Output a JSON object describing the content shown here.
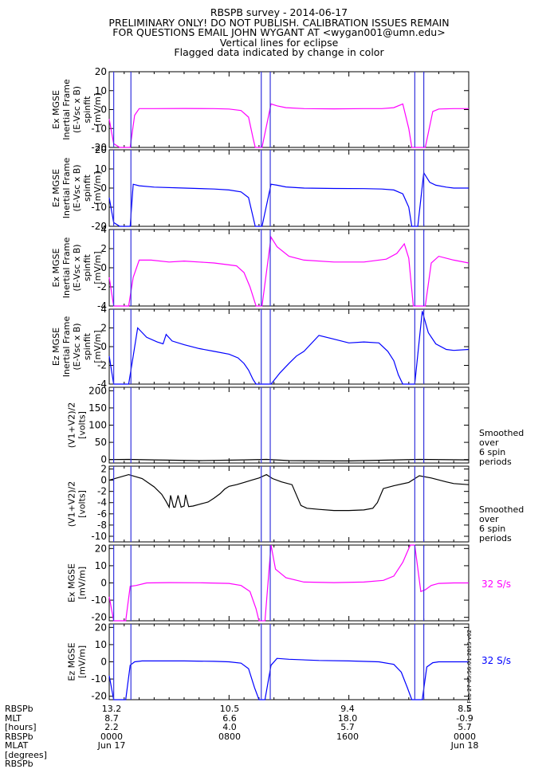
{
  "header": {
    "lines": [
      "RBSPB survey - 2014-06-17",
      "PRELIMINARY ONLY! DO NOT PUBLISH. CALIBRATION ISSUES REMAIN",
      "FOR QUESTIONS EMAIL JOHN WYGANT AT <wygan001@umn.edu>",
      "Vertical lines for eclipse",
      "Flagged data indicated by change in color"
    ]
  },
  "colors": {
    "magenta": "#ff00ff",
    "blue": "#0000ff",
    "black": "#000000",
    "eclipse": "#3333dd"
  },
  "eclipse_times": [
    [
      0.3,
      1.45
    ],
    [
      10.15,
      10.75
    ],
    [
      20.4,
      21.0
    ]
  ],
  "side_notes": {
    "panel5": [
      "Smoothed",
      "over",
      "6 spin",
      "periods"
    ],
    "panel6": [
      "Smoothed",
      "over",
      "6 spin",
      "periods"
    ],
    "panel7": "32 S/s",
    "panel8": "32 S/s"
  },
  "stamp": "Fri Feb 27 05:56:01 2015 v02",
  "footer": {
    "row_labels": [
      "RBSPb",
      "MLT",
      "[hours]",
      "RBSPb",
      "MLAT",
      "[degrees]",
      "RBSPb"
    ],
    "columns": [
      {
        "x_hours": 0,
        "values": [
          "13.2",
          "8.7",
          "2.2",
          "0000",
          "Jun 17"
        ]
      },
      {
        "x_hours": 8,
        "values": [
          "10.5",
          "6.6",
          "4.0",
          "0800",
          ""
        ]
      },
      {
        "x_hours": 16,
        "values": [
          "9.4",
          "18.0",
          "5.7",
          "1600",
          ""
        ]
      },
      {
        "x_hours": 24,
        "values": [
          "8.5",
          "-0.9",
          "5.7",
          "0000",
          "Jun 18"
        ]
      }
    ]
  },
  "chart_data": [
    {
      "type": "line",
      "color": "magenta",
      "ylabel_lines": [
        "Ex MGSE",
        "Inertial Frame",
        "(E-Vsc x B)",
        "spinfit",
        "[mV/m]"
      ],
      "ylim": [
        -20,
        20
      ],
      "yticks": [
        -20,
        -10,
        0,
        10,
        20
      ],
      "xlim": [
        0,
        24
      ],
      "x": [
        0,
        0.3,
        0.7,
        1.0,
        1.4,
        1.7,
        2.0,
        3,
        5,
        7,
        8,
        8.8,
        9.3,
        9.6,
        9.75,
        10.2,
        10.8,
        11.2,
        11.8,
        13,
        15,
        17,
        18.2,
        19.0,
        19.6,
        20.0,
        20.2,
        20.5,
        21.1,
        21.6,
        22,
        23,
        24
      ],
      "values": [
        -5,
        -18,
        -20,
        -20,
        -20,
        -3,
        0.5,
        0.5,
        0.6,
        0.5,
        0.3,
        -0.5,
        -4,
        -15,
        -20,
        -20,
        3,
        2,
        1,
        0.5,
        0.4,
        0.5,
        0.5,
        1.0,
        3,
        -10,
        -20,
        -20,
        -20,
        -1,
        0.3,
        0.5,
        0.5
      ]
    },
    {
      "type": "line",
      "color": "blue",
      "ylabel_lines": [
        "Ez MGSE",
        "Inertial Frame",
        "(E-Vsc x B)",
        "spinfit",
        "[mV/m]"
      ],
      "ylim": [
        -20,
        20
      ],
      "yticks": [
        -20,
        -10,
        0,
        10,
        20
      ],
      "xlim": [
        0,
        24
      ],
      "x": [
        0,
        0.3,
        0.7,
        1.0,
        1.4,
        1.6,
        2.0,
        3,
        5,
        7,
        8,
        8.8,
        9.3,
        9.6,
        9.75,
        10.2,
        10.8,
        11.2,
        11.8,
        13,
        15,
        17,
        18.2,
        19.0,
        19.6,
        20.0,
        20.2,
        20.6,
        21.0,
        21.4,
        21.8,
        22.5,
        23,
        24
      ],
      "values": [
        -5,
        -18,
        -20,
        -20,
        -20,
        2,
        1.2,
        0.5,
        0,
        -0.5,
        -1,
        -2,
        -5,
        -15,
        -20,
        -20,
        2,
        1.5,
        0.6,
        0,
        -0.2,
        -0.3,
        -0.5,
        -1,
        -3,
        -10,
        -20,
        -20,
        8,
        3,
        1.5,
        0.5,
        0,
        0
      ]
    },
    {
      "type": "line",
      "color": "magenta",
      "ylabel_lines": [
        "Ex MGSE",
        "Inertial Frame",
        "(E-Vsc x B)",
        "spinfit",
        "[mV/m]"
      ],
      "ylim": [
        -4,
        4
      ],
      "yticks": [
        -4,
        -2,
        0,
        2,
        4
      ],
      "xlim": [
        0,
        24
      ],
      "x": [
        0,
        0.3,
        0.8,
        1.3,
        1.6,
        2.0,
        2.8,
        4,
        5,
        6,
        7,
        8,
        8.5,
        9.0,
        9.4,
        9.8,
        10.2,
        10.8,
        11.2,
        12,
        13,
        15,
        17,
        18.5,
        19.2,
        19.7,
        20.0,
        20.3,
        20.6,
        21.1,
        21.5,
        22,
        23,
        24
      ],
      "values": [
        -1,
        -4,
        -4,
        -4,
        -1,
        0.8,
        0.8,
        0.6,
        0.7,
        0.6,
        0.5,
        0.3,
        0.2,
        -0.5,
        -2,
        -4,
        -4,
        3.2,
        2.2,
        1.2,
        0.8,
        0.6,
        0.6,
        0.9,
        1.5,
        2.5,
        1.0,
        -4,
        -4,
        -4,
        0.5,
        1.2,
        0.8,
        0.5
      ]
    },
    {
      "type": "line",
      "color": "blue",
      "ylabel_lines": [
        "Ez MGSE",
        "Inertial Frame",
        "(E-Vsc x B)",
        "spinfit",
        "[mV/m]"
      ],
      "ylim": [
        -4,
        4
      ],
      "yticks": [
        -4,
        -2,
        0,
        2,
        4
      ],
      "xlim": [
        0,
        24
      ],
      "x": [
        0,
        0.3,
        0.8,
        1.3,
        1.6,
        1.9,
        2.5,
        3.2,
        3.6,
        3.8,
        4.2,
        5,
        6,
        7,
        8,
        8.6,
        9.0,
        9.3,
        9.6,
        9.8,
        10.2,
        10.8,
        11.4,
        12,
        12.5,
        13,
        14,
        15,
        16,
        17,
        18,
        18.6,
        19.0,
        19.3,
        19.6,
        20.0,
        20.4,
        20.9,
        21.3,
        21.8,
        22.5,
        23,
        24
      ],
      "values": [
        -1,
        -4,
        -4,
        -4,
        -1,
        2,
        1.0,
        0.5,
        0.3,
        1.3,
        0.6,
        0.2,
        -0.2,
        -0.5,
        -0.8,
        -1.2,
        -1.8,
        -2.5,
        -3.5,
        -4,
        -4,
        -4,
        -2.8,
        -1.8,
        -1.0,
        -0.5,
        1.2,
        0.8,
        0.4,
        0.5,
        0.4,
        -0.5,
        -1.5,
        -3,
        -4,
        -4,
        -4,
        3.8,
        1.5,
        0.3,
        -0.3,
        -0.4,
        -0.3
      ]
    },
    {
      "type": "line",
      "color": "black",
      "ylabel_lines": [
        "(V1+V2)/2",
        "[volts]"
      ],
      "ylim": [
        -10,
        210
      ],
      "yticks": [
        0,
        50,
        100,
        150,
        200
      ],
      "xlim": [
        0,
        24
      ],
      "x": [
        0,
        1.3,
        3,
        6,
        9,
        10.5,
        12,
        16,
        20.7,
        24
      ],
      "values": [
        0,
        0.5,
        -1,
        -3,
        -1,
        0.5,
        -3,
        -4,
        0.5,
        -1
      ]
    },
    {
      "type": "line",
      "color": "black",
      "ylabel_lines": [
        "(V1+V2)/2",
        "[volts]"
      ],
      "ylim": [
        -11,
        2.5
      ],
      "yticks": [
        -10,
        -8,
        -6,
        -4,
        -2,
        0,
        2
      ],
      "xlim": [
        0,
        24
      ],
      "x": [
        0,
        1.3,
        2.2,
        3.0,
        3.5,
        3.8,
        4.0,
        4.1,
        4.3,
        4.4,
        4.6,
        4.8,
        5.0,
        5.1,
        5.3,
        5.6,
        6.0,
        6.6,
        7.0,
        7.4,
        7.7,
        8.0,
        8.5,
        9.0,
        9.5,
        10.0,
        10.5,
        10.9,
        11.5,
        12.2,
        12.8,
        13.2,
        14,
        15,
        16,
        17,
        17.6,
        17.9,
        18.3,
        19,
        20,
        20.7,
        21.5,
        22.5,
        23,
        24
      ],
      "values": [
        0,
        1,
        0.3,
        -1.2,
        -2.5,
        -3.8,
        -4.8,
        -2.7,
        -4.8,
        -4.8,
        -2.7,
        -4.8,
        -4.6,
        -2.6,
        -4.7,
        -4.6,
        -4.3,
        -3.9,
        -3.2,
        -2.4,
        -1.6,
        -1.1,
        -0.8,
        -0.4,
        0,
        0.4,
        1.0,
        0.3,
        -0.3,
        -0.8,
        -4.5,
        -5.0,
        -5.2,
        -5.4,
        -5.4,
        -5.3,
        -5.0,
        -4.0,
        -1.5,
        -1.0,
        -0.4,
        0.8,
        0.4,
        -0.3,
        -0.6,
        -0.8
      ]
    },
    {
      "type": "line",
      "color": "magenta",
      "ylabel_lines": [
        "Ex MGSE",
        "[mV/m]"
      ],
      "ylim": [
        -22,
        22
      ],
      "yticks": [
        -20,
        -10,
        0,
        10,
        20
      ],
      "xlim": [
        0,
        24
      ],
      "x": [
        0,
        0.3,
        0.8,
        1.1,
        1.4,
        1.8,
        2.5,
        4,
        6,
        8,
        8.8,
        9.4,
        9.8,
        10.0,
        10.4,
        10.8,
        11.1,
        11.8,
        13,
        15,
        17,
        18.3,
        19.0,
        19.6,
        20.1,
        20.4,
        20.8,
        21.1,
        21.5,
        22,
        23,
        24
      ],
      "values": [
        -8,
        -22,
        -22,
        -22,
        -2,
        -1.5,
        0,
        0.2,
        0.1,
        -0.3,
        -1.5,
        -5,
        -15,
        -22,
        -22,
        22,
        8,
        3,
        0.5,
        0.2,
        0.5,
        1.5,
        4,
        12,
        22,
        22,
        -5,
        -4,
        -1.5,
        -0.3,
        0,
        0
      ]
    },
    {
      "type": "line",
      "color": "blue",
      "ylabel_lines": [
        "Ez MGSE",
        "[mV/m]"
      ],
      "ylim": [
        -22,
        22
      ],
      "yticks": [
        -20,
        -10,
        0,
        10,
        20
      ],
      "xlim": [
        0,
        24
      ],
      "x": [
        0,
        0.3,
        0.8,
        1.1,
        1.4,
        1.7,
        2.2,
        3,
        5,
        7,
        8,
        8.8,
        9.3,
        9.7,
        10.0,
        10.4,
        10.8,
        11.2,
        12,
        14,
        16,
        18,
        19.0,
        19.5,
        19.9,
        20.2,
        20.6,
        20.9,
        21.2,
        21.6,
        22,
        23,
        24
      ],
      "values": [
        -8,
        -22,
        -22,
        -22,
        -2,
        0,
        0.5,
        0.5,
        0.5,
        0.3,
        0,
        -0.8,
        -4,
        -15,
        -22,
        -22,
        -2,
        2,
        1.5,
        0.8,
        0.5,
        0,
        -1.5,
        -6,
        -15,
        -22,
        -22,
        -22,
        -3,
        -0.5,
        0,
        0,
        0
      ]
    }
  ]
}
